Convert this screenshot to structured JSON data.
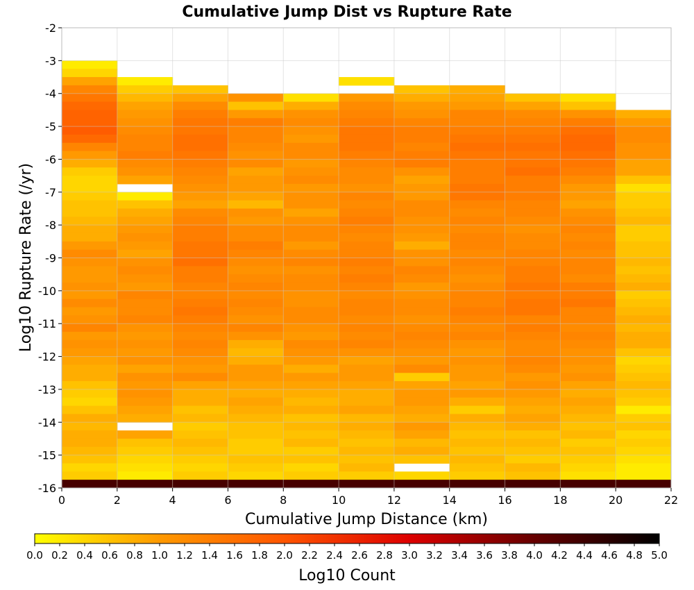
{
  "chart_data": {
    "type": "heatmap",
    "title": "Cumulative Jump Dist vs Rupture Rate",
    "xlabel": "Cumulative Jump Distance (km)",
    "ylabel": "Log10 Rupture Rate (/yr)",
    "colorbar_label": "Log10 Count",
    "xlim": [
      0,
      22
    ],
    "ylim": [
      -16,
      -2
    ],
    "x_ticks": [
      "0",
      "2",
      "4",
      "6",
      "8",
      "10",
      "12",
      "14",
      "16",
      "18",
      "20",
      "22"
    ],
    "y_ticks": [
      "-2",
      "-3",
      "-4",
      "-5",
      "-6",
      "-7",
      "-8",
      "-9",
      "-10",
      "-11",
      "-12",
      "-13",
      "-14",
      "-15",
      "-16"
    ],
    "colorbar_range": [
      0,
      5
    ],
    "colorbar_ticks": [
      "0.0",
      "0.2",
      "0.4",
      "0.6",
      "0.8",
      "1.0",
      "1.2",
      "1.4",
      "1.6",
      "1.8",
      "2.0",
      "2.2",
      "2.4",
      "2.6",
      "2.8",
      "3.0",
      "3.2",
      "3.4",
      "3.6",
      "3.8",
      "4.0",
      "4.2",
      "4.4",
      "4.6",
      "4.8",
      "5.0"
    ],
    "colormap": [
      "#ffff00",
      "#ff9900",
      "#ff5500",
      "#dd0000",
      "#660000",
      "#000000"
    ],
    "x_bin_width": 2,
    "y_bin_height": 0.25,
    "columns": [
      {
        "x_start": 0,
        "top": -3.0,
        "gaps": [
          -15.75
        ],
        "bottom": -16.0,
        "bottom_value": 4.3,
        "values": [
          0.2,
          0.4,
          0.9,
          1.3,
          1.5,
          1.7,
          1.8,
          1.8,
          1.9,
          1.7,
          1.3,
          1.0,
          0.8,
          0.5,
          0.4,
          0.4,
          0.5,
          0.6,
          0.6,
          0.7,
          0.8,
          0.8,
          1.0,
          1.2,
          1.1,
          1.0,
          1.0,
          1.1,
          1.0,
          1.2,
          1.0,
          1.1,
          1.3,
          1.0,
          1.1,
          1.0,
          0.9,
          0.8,
          0.8,
          0.6,
          0.5,
          0.4,
          0.6,
          0.8,
          0.7,
          0.8,
          0.8,
          0.7,
          0.6,
          0.4,
          0.5,
          0.4
        ]
      },
      {
        "x_start": 2,
        "top": -3.5,
        "gaps": [
          -6.75,
          -14.0
        ],
        "bottom": -16.0,
        "bottom_value": 4.3,
        "values": [
          0.2,
          0.5,
          0.7,
          0.9,
          1.0,
          1.1,
          1.2,
          1.3,
          1.3,
          1.4,
          1.2,
          1.1,
          0.9,
          0.5,
          0.2,
          0.6,
          0.8,
          0.9,
          1.0,
          1.1,
          1.0,
          0.9,
          1.1,
          1.2,
          1.1,
          1.0,
          1.3,
          1.2,
          1.2,
          1.3,
          1.1,
          1.0,
          1.1,
          1.0,
          1.1,
          0.9,
          1.1,
          1.0,
          1.1,
          1.0,
          0.9,
          0.8,
          0.7,
          0.9,
          0.6,
          0.5,
          0.4,
          0.3,
          0.2,
          0.3
        ]
      },
      {
        "x_start": 4,
        "top": -3.75,
        "gaps": [],
        "bottom": -16.0,
        "bottom_value": 4.3,
        "values": [
          0.6,
          0.9,
          1.2,
          1.4,
          1.5,
          1.5,
          1.6,
          1.6,
          1.5,
          1.4,
          1.3,
          1.2,
          1.1,
          1.0,
          0.9,
          1.2,
          1.3,
          1.4,
          1.4,
          1.5,
          1.5,
          1.6,
          1.4,
          1.4,
          1.3,
          1.3,
          1.4,
          1.5,
          1.4,
          1.3,
          1.2,
          1.3,
          1.2,
          1.1,
          1.0,
          1.2,
          0.9,
          0.8,
          0.8,
          0.6,
          0.7,
          0.5,
          0.6,
          0.7,
          0.6,
          0.5,
          0.4,
          0.5,
          0.4
        ]
      },
      {
        "x_start": 6,
        "top": -4.0,
        "gaps": [],
        "bottom": -16.0,
        "bottom_value": 4.3,
        "values": [
          1.1,
          0.6,
          1.0,
          1.4,
          1.3,
          1.3,
          1.2,
          1.1,
          1.2,
          0.9,
          1.0,
          1.0,
          0.9,
          0.7,
          1.1,
          1.0,
          1.2,
          1.2,
          1.4,
          1.3,
          1.2,
          1.1,
          1.2,
          1.3,
          1.2,
          1.3,
          1.2,
          1.1,
          1.3,
          1.1,
          0.8,
          0.7,
          0.8,
          1.0,
          1.0,
          0.9,
          0.8,
          0.9,
          0.8,
          0.7,
          0.6,
          0.6,
          0.5,
          0.5,
          0.6,
          0.5,
          0.4,
          0.5
        ]
      },
      {
        "x_start": 8,
        "top": -4.0,
        "gaps": [
          -15.75
        ],
        "bottom": -16.0,
        "bottom_value": 4.3,
        "values": [
          0.3,
          0.8,
          1.1,
          1.2,
          1.1,
          1.0,
          1.2,
          1.2,
          1.0,
          1.1,
          1.2,
          1.0,
          1.1,
          1.1,
          0.9,
          1.1,
          1.2,
          1.2,
          1.0,
          1.2,
          1.3,
          1.1,
          1.2,
          1.2,
          1.1,
          1.1,
          1.2,
          1.2,
          1.1,
          1.0,
          1.2,
          1.1,
          1.0,
          0.8,
          1.0,
          0.9,
          0.8,
          0.7,
          0.8,
          0.6,
          0.7,
          0.6,
          0.7,
          0.5,
          0.6,
          0.4,
          0.5
        ]
      },
      {
        "x_start": 10,
        "top": -3.5,
        "gaps": [
          -3.75
        ],
        "bottom": -16.0,
        "bottom_value": 4.3,
        "values": [
          0.3,
          0.9,
          1.0,
          1.2,
          1.3,
          1.4,
          1.5,
          1.5,
          1.5,
          1.4,
          1.3,
          1.2,
          1.2,
          1.1,
          1.3,
          1.2,
          1.3,
          1.4,
          1.3,
          1.2,
          1.3,
          1.3,
          1.4,
          1.3,
          1.4,
          1.3,
          1.2,
          1.3,
          1.3,
          1.2,
          1.3,
          1.2,
          1.3,
          1.1,
          0.9,
          1.0,
          1.0,
          0.9,
          0.8,
          0.8,
          0.9,
          0.7,
          0.8,
          0.7,
          0.6,
          0.7,
          0.6,
          0.7,
          0.5,
          0.4
        ]
      },
      {
        "x_start": 12,
        "top": -3.75,
        "gaps": [
          -15.25
        ],
        "bottom": -16.0,
        "bottom_value": 4.3,
        "values": [
          0.6,
          0.8,
          1.0,
          1.1,
          1.3,
          1.4,
          1.4,
          1.3,
          1.4,
          1.4,
          1.1,
          0.9,
          1.0,
          1.0,
          1.2,
          1.2,
          1.1,
          1.1,
          1.0,
          0.8,
          1.1,
          1.1,
          1.3,
          1.2,
          1.0,
          1.1,
          1.2,
          1.2,
          1.1,
          1.2,
          1.3,
          1.2,
          1.1,
          1.0,
          1.2,
          0.5,
          0.9,
          1.0,
          1.0,
          0.9,
          0.8,
          1.0,
          0.9,
          0.7,
          0.8,
          0.6,
          0.5,
          0.4
        ]
      },
      {
        "x_start": 14,
        "top": -3.75,
        "gaps": [],
        "bottom": -16.0,
        "bottom_value": 4.3,
        "values": [
          0.8,
          0.9,
          1.0,
          1.3,
          1.3,
          1.4,
          1.5,
          1.6,
          1.5,
          1.4,
          1.4,
          1.4,
          1.5,
          1.5,
          1.3,
          1.2,
          1.3,
          1.2,
          1.3,
          1.3,
          1.2,
          1.3,
          1.2,
          1.1,
          1.2,
          1.3,
          1.3,
          1.4,
          1.3,
          1.2,
          1.3,
          1.1,
          1.0,
          1.1,
          1.0,
          1.0,
          0.9,
          1.0,
          0.8,
          0.5,
          0.8,
          0.7,
          0.6,
          0.7,
          0.6,
          0.7,
          0.6,
          0.5,
          0.6
        ]
      },
      {
        "x_start": 16,
        "top": -4.0,
        "gaps": [],
        "bottom": -16.0,
        "bottom_value": 4.3,
        "values": [
          0.6,
          0.9,
          1.2,
          1.3,
          1.4,
          1.5,
          1.6,
          1.5,
          1.5,
          1.6,
          1.4,
          1.4,
          1.4,
          1.3,
          1.3,
          1.2,
          1.1,
          1.2,
          1.2,
          1.3,
          1.3,
          1.4,
          1.4,
          1.5,
          1.4,
          1.5,
          1.5,
          1.3,
          1.4,
          1.3,
          1.2,
          1.2,
          1.3,
          1.2,
          1.0,
          1.1,
          1.0,
          0.9,
          0.8,
          0.9,
          0.8,
          0.6,
          0.7,
          0.6,
          0.5,
          0.7,
          0.6,
          0.7
        ]
      },
      {
        "x_start": 18,
        "top": -4.0,
        "gaps": [],
        "bottom": -16.0,
        "bottom_value": 4.3,
        "values": [
          0.3,
          0.6,
          1.1,
          1.4,
          1.6,
          1.7,
          1.7,
          1.6,
          1.5,
          1.4,
          1.2,
          1.0,
          1.0,
          0.9,
          1.1,
          1.2,
          1.3,
          1.2,
          1.3,
          1.2,
          1.3,
          1.3,
          1.2,
          1.4,
          1.4,
          1.5,
          1.3,
          1.3,
          1.2,
          1.3,
          1.2,
          1.1,
          1.1,
          1.0,
          1.1,
          0.9,
          0.8,
          0.9,
          0.8,
          0.7,
          0.6,
          0.7,
          0.5,
          0.6,
          0.5,
          0.4,
          0.3,
          0.4
        ]
      },
      {
        "x_start": 20,
        "top": -4.5,
        "gaps": [],
        "bottom": -16.0,
        "bottom_value": 4.3,
        "values": [
          0.8,
          1.0,
          1.2,
          1.2,
          1.1,
          1.1,
          0.9,
          0.9,
          0.6,
          0.3,
          0.5,
          0.5,
          0.6,
          0.7,
          0.5,
          0.5,
          0.6,
          0.6,
          0.7,
          0.6,
          0.7,
          0.8,
          0.5,
          0.6,
          0.7,
          0.8,
          0.7,
          0.8,
          0.8,
          0.6,
          0.4,
          0.5,
          0.6,
          0.7,
          0.6,
          0.5,
          0.2,
          0.5,
          0.6,
          0.4,
          0.5,
          0.4,
          0.3,
          0.2,
          0.2,
          0.2
        ]
      }
    ]
  }
}
